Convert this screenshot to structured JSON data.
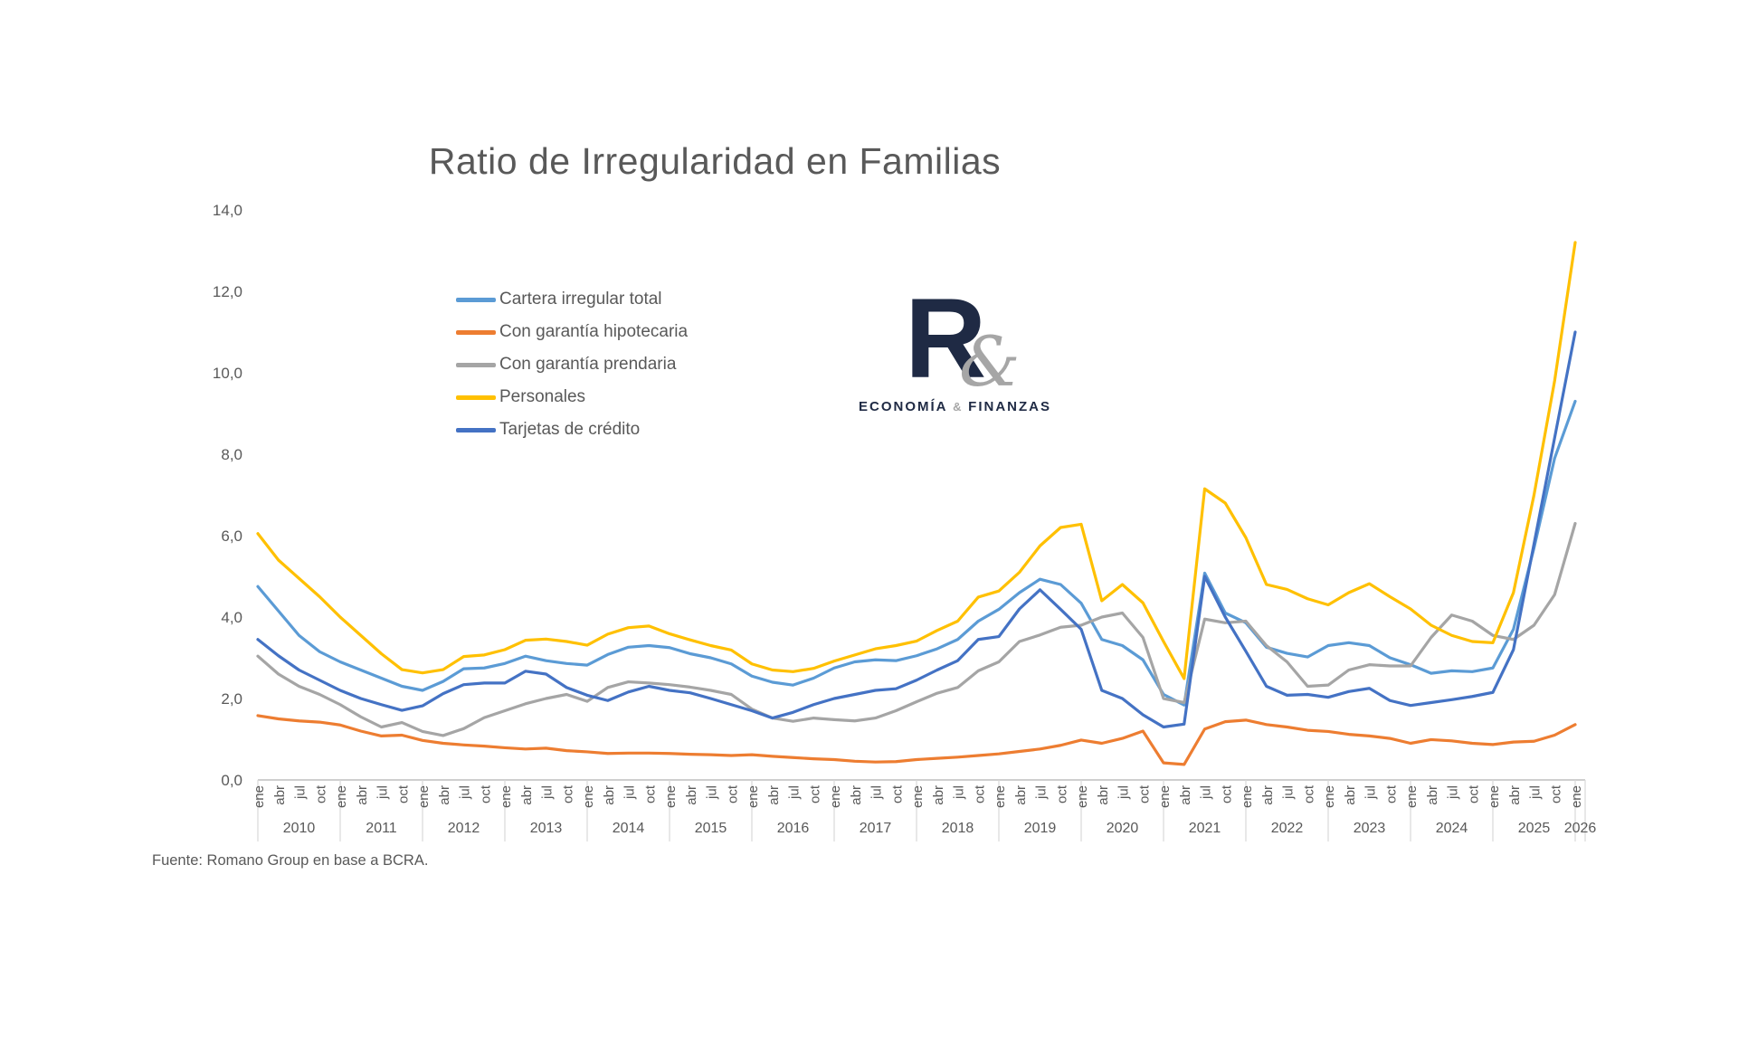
{
  "page": {
    "title": "Ratio de Irregularidad en Familias",
    "source": "Fuente: Romano Group en base a BCRA."
  },
  "logo": {
    "letter": "R",
    "ampersand": "&",
    "subtitle": [
      "ECONOMÍA",
      "&",
      "FINANZAS"
    ]
  },
  "chart_data": {
    "type": "line",
    "title": "Ratio de Irregularidad en Familias",
    "grid": false,
    "legend_position": "middle-left",
    "ylim": [
      0,
      14
    ],
    "y_tick_labels": [
      "0,0",
      "2,0",
      "4,0",
      "6,0",
      "8,0",
      "10,0",
      "12,0",
      "14,0"
    ],
    "x_month_labels": [
      "ene",
      "abr",
      "jul",
      "oct"
    ],
    "x_years": [
      "2010",
      "2011",
      "2012",
      "2013",
      "2014",
      "2015",
      "2016",
      "2017",
      "2018",
      "2019",
      "2020",
      "2021",
      "2022",
      "2023",
      "2024",
      "2025"
    ],
    "x_end": {
      "month": "ene",
      "year": "2026"
    },
    "sampling": "quarterly (ene, abr, jul, oct) 2010-2025 plus ene-2026",
    "series": [
      {
        "name": "Cartera irregular total",
        "color": "#5B9BD5",
        "values": [
          4.75,
          4.15,
          3.55,
          3.15,
          2.9,
          2.7,
          2.5,
          2.3,
          2.2,
          2.42,
          2.73,
          2.75,
          2.86,
          3.04,
          2.93,
          2.86,
          2.82,
          3.08,
          3.26,
          3.3,
          3.25,
          3.1,
          3.0,
          2.85,
          2.55,
          2.4,
          2.33,
          2.5,
          2.75,
          2.9,
          2.95,
          2.93,
          3.05,
          3.22,
          3.45,
          3.9,
          4.19,
          4.6,
          4.93,
          4.8,
          4.34,
          3.45,
          3.3,
          2.95,
          2.1,
          1.84,
          5.08,
          4.1,
          3.86,
          3.26,
          3.11,
          3.02,
          3.3,
          3.37,
          3.3,
          3.0,
          2.83,
          2.62,
          2.68,
          2.66,
          2.75,
          3.7,
          5.7,
          7.9,
          9.3
        ]
      },
      {
        "name": "Con garantía hipotecaria",
        "color": "#ED7D31",
        "values": [
          1.58,
          1.5,
          1.45,
          1.42,
          1.35,
          1.2,
          1.08,
          1.1,
          0.97,
          0.9,
          0.86,
          0.83,
          0.79,
          0.76,
          0.78,
          0.72,
          0.69,
          0.65,
          0.66,
          0.66,
          0.65,
          0.63,
          0.62,
          0.6,
          0.62,
          0.58,
          0.55,
          0.52,
          0.5,
          0.46,
          0.44,
          0.45,
          0.5,
          0.53,
          0.56,
          0.6,
          0.64,
          0.7,
          0.76,
          0.85,
          0.98,
          0.9,
          1.02,
          1.2,
          0.42,
          0.38,
          1.25,
          1.43,
          1.47,
          1.36,
          1.3,
          1.22,
          1.19,
          1.12,
          1.08,
          1.02,
          0.9,
          0.99,
          0.96,
          0.9,
          0.87,
          0.93,
          0.95,
          1.1,
          1.36
        ]
      },
      {
        "name": "Con garantía prendaria",
        "color": "#A5A5A5",
        "values": [
          3.04,
          2.6,
          2.3,
          2.1,
          1.85,
          1.55,
          1.3,
          1.41,
          1.19,
          1.09,
          1.26,
          1.53,
          1.7,
          1.87,
          2.0,
          2.1,
          1.93,
          2.27,
          2.41,
          2.38,
          2.34,
          2.28,
          2.2,
          2.1,
          1.74,
          1.52,
          1.44,
          1.52,
          1.48,
          1.45,
          1.52,
          1.7,
          1.92,
          2.13,
          2.27,
          2.68,
          2.9,
          3.4,
          3.56,
          3.75,
          3.8,
          4.0,
          4.1,
          3.5,
          2.0,
          1.9,
          3.95,
          3.86,
          3.9,
          3.3,
          2.9,
          2.3,
          2.33,
          2.7,
          2.83,
          2.8,
          2.8,
          3.5,
          4.05,
          3.9,
          3.55,
          3.45,
          3.8,
          4.55,
          6.3
        ]
      },
      {
        "name": "Personales",
        "color": "#FFC000",
        "values": [
          6.05,
          5.4,
          4.95,
          4.5,
          4.0,
          3.55,
          3.1,
          2.71,
          2.63,
          2.71,
          3.03,
          3.07,
          3.2,
          3.43,
          3.46,
          3.4,
          3.31,
          3.58,
          3.74,
          3.78,
          3.59,
          3.44,
          3.3,
          3.19,
          2.85,
          2.7,
          2.66,
          2.74,
          2.92,
          3.07,
          3.22,
          3.3,
          3.41,
          3.67,
          3.9,
          4.49,
          4.64,
          5.1,
          5.75,
          6.2,
          6.28,
          4.4,
          4.8,
          4.35,
          3.4,
          2.49,
          7.15,
          6.8,
          5.95,
          4.8,
          4.68,
          4.45,
          4.3,
          4.6,
          4.82,
          4.5,
          4.2,
          3.8,
          3.55,
          3.4,
          3.37,
          4.6,
          7.0,
          9.8,
          13.2
        ]
      },
      {
        "name": "Tarjetas de crédito",
        "color": "#4472C4",
        "values": [
          3.45,
          3.05,
          2.7,
          2.45,
          2.2,
          2.0,
          1.85,
          1.71,
          1.82,
          2.12,
          2.34,
          2.38,
          2.38,
          2.67,
          2.6,
          2.27,
          2.08,
          1.95,
          2.16,
          2.3,
          2.2,
          2.14,
          2.0,
          1.85,
          1.7,
          1.52,
          1.66,
          1.85,
          2.0,
          2.1,
          2.2,
          2.24,
          2.45,
          2.7,
          2.93,
          3.45,
          3.52,
          4.2,
          4.67,
          4.19,
          3.7,
          2.2,
          2.0,
          1.6,
          1.3,
          1.37,
          5.0,
          4.0,
          3.16,
          2.3,
          2.08,
          2.1,
          2.03,
          2.17,
          2.25,
          1.95,
          1.83,
          1.9,
          1.97,
          2.05,
          2.15,
          3.2,
          5.8,
          8.4,
          11.0
        ]
      }
    ]
  }
}
